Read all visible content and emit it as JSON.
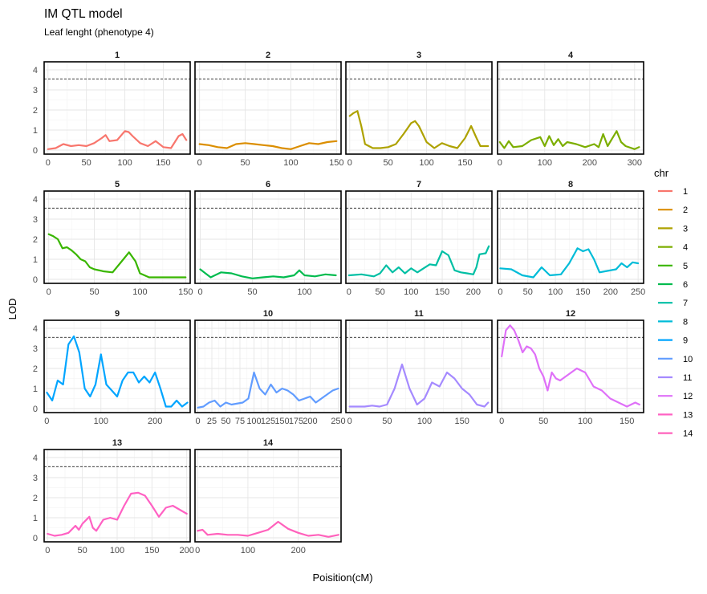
{
  "title": "IM QTL model",
  "subtitle": "Leaf lenght (phenotype 4)",
  "xlabel": "Poisition(cM)",
  "ylabel": "LOD",
  "legend": {
    "title": "chr",
    "items": [
      {
        "label": "1",
        "color": "#F8766D"
      },
      {
        "label": "2",
        "color": "#DB8E00"
      },
      {
        "label": "3",
        "color": "#AEA200"
      },
      {
        "label": "4",
        "color": "#7CAE00"
      },
      {
        "label": "5",
        "color": "#39B600"
      },
      {
        "label": "6",
        "color": "#00BB4E"
      },
      {
        "label": "7",
        "color": "#00BFA4"
      },
      {
        "label": "8",
        "color": "#00BCD8"
      },
      {
        "label": "9",
        "color": "#00A5FF"
      },
      {
        "label": "10",
        "color": "#619CFF"
      },
      {
        "label": "11",
        "color": "#A58AFF"
      },
      {
        "label": "12",
        "color": "#DF70F8"
      },
      {
        "label": "13",
        "color": "#FF61C3"
      },
      {
        "label": "14",
        "color": "#FF62BC"
      }
    ]
  },
  "chart_data": {
    "type": "line",
    "title": "IM QTL model",
    "subtitle": "Leaf lenght (phenotype 4)",
    "xlabel": "Poisition(cM)",
    "ylabel": "LOD",
    "ylim": [
      -0.2,
      4.4
    ],
    "yticks": [
      0,
      1,
      2,
      3,
      4
    ],
    "threshold": 3.55,
    "grid": true,
    "legend_position": "right",
    "facets": [
      {
        "chr": "1",
        "color": "#F8766D",
        "xlim": [
          -5,
          185
        ],
        "xticks": [
          0,
          50,
          100,
          150
        ],
        "x": [
          0,
          10,
          20,
          30,
          40,
          50,
          60,
          70,
          75,
          80,
          90,
          100,
          105,
          110,
          120,
          130,
          140,
          150,
          160,
          170,
          175,
          180
        ],
        "y": [
          0.05,
          0.1,
          0.3,
          0.2,
          0.25,
          0.2,
          0.35,
          0.6,
          0.75,
          0.45,
          0.5,
          0.95,
          0.9,
          0.7,
          0.35,
          0.2,
          0.45,
          0.15,
          0.1,
          0.7,
          0.8,
          0.5
        ]
      },
      {
        "chr": "2",
        "color": "#DB8E00",
        "xlim": [
          -5,
          155
        ],
        "xticks": [
          0,
          50,
          100,
          150
        ],
        "x": [
          0,
          10,
          20,
          30,
          40,
          50,
          60,
          70,
          80,
          90,
          100,
          110,
          120,
          130,
          140,
          150
        ],
        "y": [
          0.3,
          0.25,
          0.15,
          0.1,
          0.3,
          0.35,
          0.3,
          0.25,
          0.2,
          0.1,
          0.05,
          0.2,
          0.35,
          0.3,
          0.4,
          0.45
        ]
      },
      {
        "chr": "3",
        "color": "#AEA200",
        "xlim": [
          -5,
          185
        ],
        "xticks": [
          0,
          50,
          100,
          150
        ],
        "x": [
          0,
          5,
          10,
          15,
          20,
          30,
          40,
          50,
          60,
          70,
          80,
          85,
          90,
          100,
          110,
          120,
          130,
          140,
          150,
          158,
          165,
          170,
          180
        ],
        "y": [
          1.7,
          1.85,
          1.95,
          1.2,
          0.3,
          0.1,
          0.1,
          0.15,
          0.3,
          0.8,
          1.35,
          1.45,
          1.2,
          0.4,
          0.1,
          0.35,
          0.2,
          0.1,
          0.6,
          1.2,
          0.6,
          0.2,
          0.2
        ]
      },
      {
        "chr": "4",
        "color": "#7CAE00",
        "xlim": [
          -5,
          320
        ],
        "xticks": [
          0,
          100,
          200,
          300
        ],
        "x": [
          0,
          10,
          20,
          30,
          50,
          70,
          90,
          100,
          110,
          120,
          130,
          140,
          150,
          170,
          190,
          210,
          220,
          230,
          240,
          260,
          270,
          280,
          300,
          310
        ],
        "y": [
          0.4,
          0.1,
          0.45,
          0.15,
          0.2,
          0.5,
          0.65,
          0.2,
          0.7,
          0.25,
          0.55,
          0.2,
          0.4,
          0.3,
          0.15,
          0.3,
          0.15,
          0.8,
          0.2,
          0.95,
          0.4,
          0.2,
          0.05,
          0.15
        ]
      },
      {
        "chr": "5",
        "color": "#39B600",
        "xlim": [
          -5,
          155
        ],
        "xticks": [
          0,
          50,
          100,
          150
        ],
        "x": [
          0,
          5,
          10,
          15,
          20,
          25,
          30,
          35,
          40,
          45,
          50,
          60,
          70,
          80,
          88,
          95,
          100,
          110,
          120,
          130,
          140,
          150
        ],
        "y": [
          2.25,
          2.15,
          2.0,
          1.55,
          1.6,
          1.45,
          1.25,
          1.0,
          0.9,
          0.6,
          0.5,
          0.4,
          0.35,
          0.9,
          1.35,
          0.9,
          0.3,
          0.1,
          0.1,
          0.1,
          0.1,
          0.1
        ]
      },
      {
        "chr": "6",
        "color": "#00BB4E",
        "xlim": [
          -5,
          135
        ],
        "xticks": [
          0,
          50,
          100
        ],
        "x": [
          0,
          10,
          20,
          30,
          40,
          50,
          60,
          70,
          80,
          90,
          95,
          100,
          110,
          120,
          130
        ],
        "y": [
          0.5,
          0.1,
          0.35,
          0.3,
          0.15,
          0.05,
          0.1,
          0.15,
          0.1,
          0.2,
          0.45,
          0.2,
          0.15,
          0.25,
          0.2
        ]
      },
      {
        "chr": "7",
        "color": "#00BFA4",
        "xlim": [
          -5,
          230
        ],
        "xticks": [
          0,
          50,
          100,
          150,
          200
        ],
        "x": [
          0,
          20,
          40,
          50,
          60,
          70,
          80,
          90,
          100,
          110,
          120,
          130,
          140,
          150,
          160,
          170,
          180,
          190,
          200,
          205,
          210,
          220,
          225
        ],
        "y": [
          0.2,
          0.25,
          0.15,
          0.3,
          0.7,
          0.35,
          0.6,
          0.3,
          0.55,
          0.35,
          0.55,
          0.75,
          0.7,
          1.4,
          1.2,
          0.45,
          0.35,
          0.3,
          0.25,
          0.6,
          1.25,
          1.3,
          1.65
        ]
      },
      {
        "chr": "8",
        "color": "#00BCD8",
        "xlim": [
          -5,
          260
        ],
        "xticks": [
          0,
          50,
          100,
          150,
          200,
          250
        ],
        "x": [
          0,
          20,
          40,
          60,
          75,
          90,
          110,
          125,
          140,
          150,
          160,
          170,
          180,
          190,
          210,
          220,
          230,
          240,
          250
        ],
        "y": [
          0.55,
          0.5,
          0.2,
          0.1,
          0.6,
          0.2,
          0.25,
          0.8,
          1.55,
          1.4,
          1.5,
          1.0,
          0.35,
          0.4,
          0.5,
          0.8,
          0.6,
          0.85,
          0.8
        ]
      },
      {
        "chr": "9",
        "color": "#00A5FF",
        "xlim": [
          -5,
          265
        ],
        "xticks": [
          0,
          100,
          200
        ],
        "x": [
          0,
          10,
          20,
          30,
          40,
          50,
          60,
          70,
          80,
          90,
          100,
          110,
          120,
          130,
          140,
          150,
          160,
          170,
          180,
          190,
          200,
          210,
          220,
          230,
          240,
          250,
          260
        ],
        "y": [
          0.8,
          0.4,
          1.4,
          1.2,
          3.2,
          3.6,
          2.8,
          1.0,
          0.6,
          1.2,
          2.7,
          1.2,
          0.9,
          0.6,
          1.4,
          1.8,
          1.8,
          1.3,
          1.6,
          1.3,
          1.8,
          1.0,
          0.1,
          0.1,
          0.4,
          0.1,
          0.3
        ]
      },
      {
        "chr": "10",
        "color": "#619CFF",
        "xlim": [
          -5,
          255
        ],
        "xticks": [
          0,
          25,
          50,
          75,
          100,
          125,
          150,
          175,
          200,
          250
        ],
        "x": [
          0,
          10,
          20,
          30,
          40,
          50,
          60,
          80,
          90,
          100,
          110,
          120,
          130,
          140,
          150,
          160,
          170,
          180,
          200,
          210,
          220,
          230,
          240,
          250
        ],
        "y": [
          0.05,
          0.1,
          0.3,
          0.4,
          0.1,
          0.3,
          0.2,
          0.3,
          0.5,
          1.8,
          1.0,
          0.7,
          1.2,
          0.8,
          1.0,
          0.9,
          0.7,
          0.4,
          0.6,
          0.3,
          0.5,
          0.7,
          0.9,
          1.0
        ]
      },
      {
        "chr": "11",
        "color": "#A58AFF",
        "xlim": [
          -5,
          190
        ],
        "xticks": [
          0,
          50,
          100,
          150
        ],
        "x": [
          0,
          10,
          20,
          30,
          40,
          50,
          60,
          70,
          80,
          90,
          100,
          110,
          120,
          130,
          140,
          150,
          160,
          170,
          180,
          185
        ],
        "y": [
          0.1,
          0.1,
          0.1,
          0.15,
          0.1,
          0.2,
          1.0,
          2.2,
          1.0,
          0.2,
          0.5,
          1.3,
          1.1,
          1.8,
          1.5,
          1.0,
          0.7,
          0.2,
          0.1,
          0.3
        ]
      },
      {
        "chr": "12",
        "color": "#DF70F8",
        "xlim": [
          -5,
          170
        ],
        "xticks": [
          0,
          50,
          100,
          150
        ],
        "x": [
          0,
          5,
          10,
          15,
          20,
          25,
          30,
          35,
          40,
          45,
          50,
          55,
          60,
          65,
          70,
          80,
          90,
          100,
          110,
          120,
          130,
          140,
          150,
          160,
          165
        ],
        "y": [
          2.6,
          3.9,
          4.15,
          3.9,
          3.4,
          2.8,
          3.1,
          3.0,
          2.7,
          2.0,
          1.6,
          0.9,
          1.8,
          1.5,
          1.4,
          1.7,
          2.0,
          1.8,
          1.1,
          0.9,
          0.5,
          0.3,
          0.1,
          0.3,
          0.2
        ]
      },
      {
        "chr": "13",
        "color": "#FF61C3",
        "xlim": [
          -5,
          205
        ],
        "xticks": [
          0,
          50,
          100,
          150,
          200
        ],
        "x": [
          0,
          10,
          20,
          30,
          40,
          45,
          50,
          60,
          65,
          70,
          80,
          90,
          100,
          110,
          120,
          130,
          140,
          150,
          160,
          170,
          180,
          190,
          200
        ],
        "y": [
          0.2,
          0.1,
          0.15,
          0.25,
          0.6,
          0.4,
          0.7,
          1.05,
          0.5,
          0.35,
          0.9,
          1.0,
          0.9,
          1.6,
          2.2,
          2.25,
          2.1,
          1.6,
          1.05,
          1.5,
          1.6,
          1.4,
          1.2
        ]
      },
      {
        "chr": "14",
        "color": "#FF62BC",
        "xlim": [
          -5,
          285
        ],
        "xticks": [
          0,
          100,
          200
        ],
        "x": [
          0,
          10,
          20,
          40,
          60,
          80,
          100,
          120,
          140,
          160,
          180,
          200,
          220,
          240,
          260,
          280
        ],
        "y": [
          0.35,
          0.4,
          0.15,
          0.2,
          0.15,
          0.15,
          0.1,
          0.25,
          0.4,
          0.8,
          0.45,
          0.25,
          0.1,
          0.15,
          0.05,
          0.15
        ]
      }
    ]
  }
}
